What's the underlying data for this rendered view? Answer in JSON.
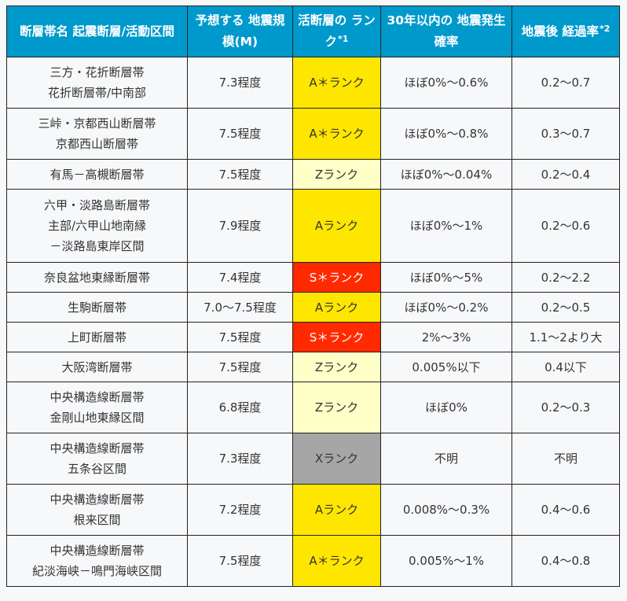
{
  "table": {
    "headers": [
      {
        "lines": [
          "断層帯名",
          "起震断層/活動区間"
        ],
        "note": ""
      },
      {
        "lines": [
          "予想する",
          "地震規模(M)"
        ],
        "note": ""
      },
      {
        "lines": [
          "活断層の",
          "ランク"
        ],
        "note": "*1"
      },
      {
        "lines": [
          "30年以内の",
          "地震発生確率"
        ],
        "note": ""
      },
      {
        "lines": [
          "地震後",
          "経過率"
        ],
        "note": "*2"
      }
    ],
    "rows": [
      {
        "name": [
          "三方・花折断層帯",
          "花折断層帯/中南部"
        ],
        "magnitude": "7.3程度",
        "rank": "A＊ランク",
        "rank_class": "A",
        "probability": "ほぼ0%〜0.6%",
        "elapsed": "0.2〜0.7"
      },
      {
        "name": [
          "三峠・京都西山断層帯",
          "京都西山断層帯"
        ],
        "magnitude": "7.5程度",
        "rank": "A＊ランク",
        "rank_class": "A",
        "probability": "ほぼ0%〜0.8%",
        "elapsed": "0.3〜0.7"
      },
      {
        "name": [
          "有馬－高槻断層帯"
        ],
        "magnitude": "7.5程度",
        "rank": "Zランク",
        "rank_class": "Z",
        "probability": "ほぼ0%〜0.04%",
        "elapsed": "0.2〜0.4"
      },
      {
        "name": [
          "六甲・淡路島断層帯",
          "主部/六甲山地南縁",
          "－淡路島東岸区間"
        ],
        "magnitude": "7.9程度",
        "rank": "Aランク",
        "rank_class": "A",
        "probability": "ほぼ0%〜1%",
        "elapsed": "0.2〜0.6"
      },
      {
        "name": [
          "奈良盆地東縁断層帯"
        ],
        "magnitude": "7.4程度",
        "rank": "S＊ランク",
        "rank_class": "S",
        "probability": "ほぼ0%〜5%",
        "elapsed": "0.2〜2.2"
      },
      {
        "name": [
          "生駒断層帯"
        ],
        "magnitude": "7.0〜7.5程度",
        "rank": "Aランク",
        "rank_class": "A",
        "probability": "ほぼ0%〜0.2%",
        "elapsed": "0.2〜0.5"
      },
      {
        "name": [
          "上町断層帯"
        ],
        "magnitude": "7.5程度",
        "rank": "S＊ランク",
        "rank_class": "S",
        "probability": "2%〜3%",
        "elapsed": "1.1〜2より大"
      },
      {
        "name": [
          "大阪湾断層帯"
        ],
        "magnitude": "7.5程度",
        "rank": "Zランク",
        "rank_class": "Z",
        "probability": "0.005%以下",
        "elapsed": "0.4以下"
      },
      {
        "name": [
          "中央構造線断層帯",
          "金剛山地東縁区間"
        ],
        "magnitude": "6.8程度",
        "rank": "Zランク",
        "rank_class": "Z",
        "probability": "ほぼ0%",
        "elapsed": "0.2〜0.3"
      },
      {
        "name": [
          "中央構造線断層帯",
          "五条谷区間"
        ],
        "magnitude": "7.3程度",
        "rank": "Xランク",
        "rank_class": "X",
        "probability": "不明",
        "elapsed": "不明"
      },
      {
        "name": [
          "中央構造線断層帯",
          "根来区間"
        ],
        "magnitude": "7.2程度",
        "rank": "Aランク",
        "rank_class": "A",
        "probability": "0.008%〜0.3%",
        "elapsed": "0.4〜0.6"
      },
      {
        "name": [
          "中央構造線断層帯",
          "紀淡海峡－鳴門海峡区間"
        ],
        "magnitude": "7.5程度",
        "rank": "A＊ランク",
        "rank_class": "A",
        "probability": "0.005%〜1%",
        "elapsed": "0.4〜0.8"
      }
    ]
  },
  "colors": {
    "header_bg": "#0099cc",
    "header_text": "#ffffff",
    "rank_A": "#ffe600",
    "rank_S": "#ff2a00",
    "rank_Z": "#ffffc8",
    "rank_X": "#a6a6a6",
    "border": "#222222",
    "cell_bg": "#f7f8fa"
  }
}
